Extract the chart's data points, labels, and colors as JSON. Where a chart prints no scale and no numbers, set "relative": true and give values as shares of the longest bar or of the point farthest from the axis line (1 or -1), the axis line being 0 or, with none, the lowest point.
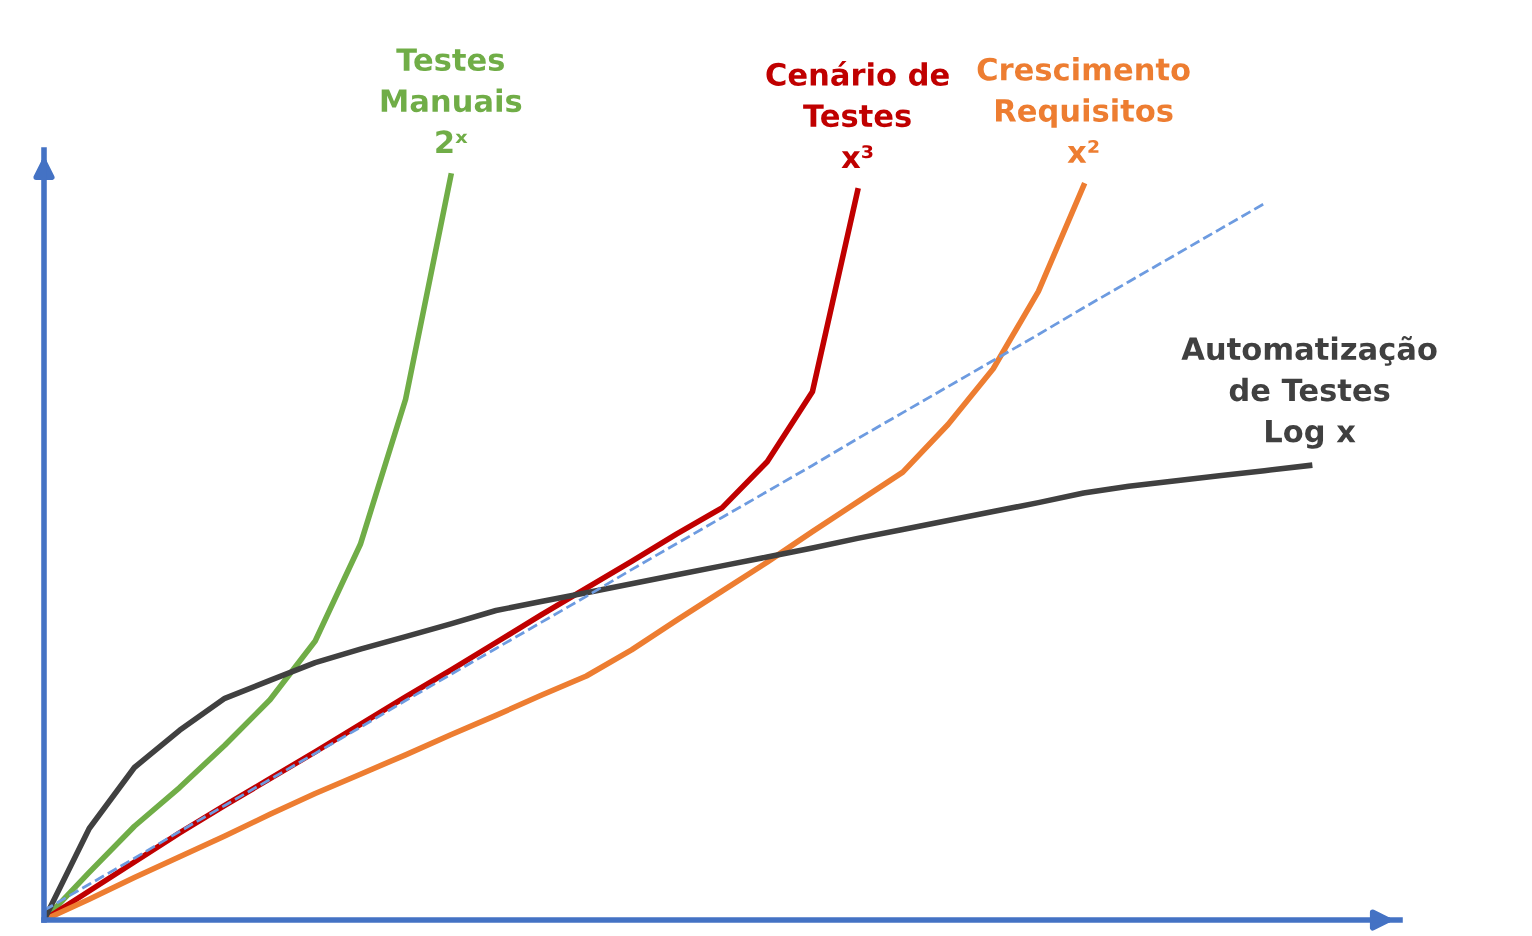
{
  "chart_data": {
    "type": "line",
    "relative": true,
    "marker": "none",
    "categories": [
      null,
      null,
      null,
      null,
      null,
      null,
      null,
      null,
      null,
      null,
      null,
      null,
      null,
      null,
      null,
      null,
      null,
      null,
      null,
      null,
      null,
      null,
      null,
      null,
      null,
      null,
      null,
      null,
      null,
      null,
      null
    ],
    "series": [
      {
        "name": "Testes\nManuais\n2ˣ",
        "color": "#70ad47",
        "values": [
          0,
          0.064,
          0.126,
          0.178,
          0.235,
          0.296,
          0.375,
          0.505,
          0.7,
          1,
          null,
          null,
          null,
          null,
          null,
          null,
          null,
          null,
          null,
          null,
          null,
          null,
          null,
          null,
          null,
          null,
          null,
          null,
          null,
          null,
          null
        ]
      },
      {
        "name": "Cenário de\nTestes\nx³",
        "color": "#c00000",
        "values": [
          0,
          0.039,
          0.078,
          0.117,
          0.154,
          0.19,
          0.226,
          0.263,
          0.3,
          0.336,
          0.373,
          0.41,
          0.446,
          0.482,
          0.519,
          0.554,
          0.616,
          0.71,
          0.98,
          null,
          null,
          null,
          null,
          null,
          null,
          null,
          null,
          null,
          null,
          null,
          null
        ]
      },
      {
        "name": "Crescimento\nRequisitos\nx²",
        "color": "#ed7d31",
        "values": [
          0,
          0.028,
          0.057,
          0.085,
          0.113,
          0.142,
          0.17,
          0.196,
          0.222,
          0.249,
          0.275,
          0.302,
          0.328,
          0.363,
          0.403,
          0.442,
          0.481,
          0.522,
          0.562,
          0.602,
          0.666,
          0.741,
          0.845,
          0.987,
          null,
          null,
          null,
          null,
          null,
          null,
          null
        ]
      },
      {
        "name": "Automatização\nde Testes\nLog x",
        "color": "#404040",
        "values": [
          0,
          0.123,
          0.205,
          0.255,
          0.298,
          0.322,
          0.346,
          0.364,
          0.381,
          0.398,
          0.416,
          0.428,
          0.44,
          0.452,
          0.464,
          0.476,
          0.488,
          0.5,
          0.513,
          0.525,
          0.537,
          0.549,
          0.561,
          0.574,
          0.583,
          0.59,
          0.597,
          0.604,
          0.611,
          null,
          null
        ]
      },
      {
        "color": "#6d9be0",
        "line_style": "dashed",
        "values": [
          0.013,
          0.048,
          0.083,
          0.119,
          0.154,
          0.189,
          0.224,
          0.259,
          0.295,
          0.33,
          0.365,
          0.4,
          0.435,
          0.471,
          0.506,
          0.541,
          0.576,
          0.611,
          0.647,
          0.682,
          0.717,
          0.752,
          0.787,
          0.823,
          0.858,
          0.893,
          0.928,
          0.963,
          null,
          null,
          null
        ]
      }
    ]
  }
}
